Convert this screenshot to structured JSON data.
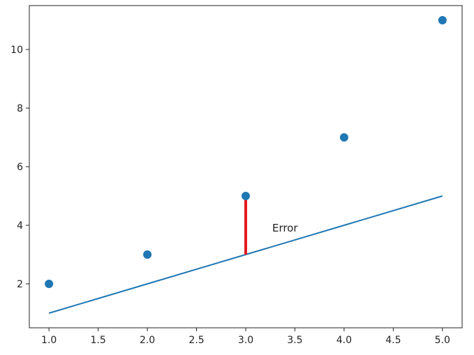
{
  "chart_data": {
    "type": "scatter",
    "title": "",
    "xlabel": "",
    "ylabel": "",
    "xlim": [
      0.8,
      5.2
    ],
    "ylim": [
      0.5,
      11.5
    ],
    "xticks": [
      1.0,
      1.5,
      2.0,
      2.5,
      3.0,
      3.5,
      4.0,
      4.5,
      5.0
    ],
    "xtick_labels": [
      "1.0",
      "1.5",
      "2.0",
      "2.5",
      "3.0",
      "3.5",
      "4.0",
      "4.5",
      "5.0"
    ],
    "yticks": [
      2,
      4,
      6,
      8,
      10
    ],
    "ytick_labels": [
      "2",
      "4",
      "6",
      "8",
      "10"
    ],
    "grid": false,
    "series": [
      {
        "kind": "scatter",
        "x": [
          1,
          2,
          3,
          4,
          5
        ],
        "y": [
          2,
          3,
          5,
          7,
          11
        ],
        "color": "#1f77b4"
      },
      {
        "kind": "line",
        "x": [
          1,
          2,
          3,
          4,
          5
        ],
        "y": [
          1,
          2,
          3,
          4,
          5
        ],
        "color": "#1f77b4"
      }
    ],
    "error_segment": {
      "x": 3,
      "y_from": 3,
      "y_to": 5,
      "color": "#e31a1c"
    },
    "annotations": [
      {
        "text": "Error",
        "x": 3.27,
        "y": 3.9
      }
    ]
  }
}
